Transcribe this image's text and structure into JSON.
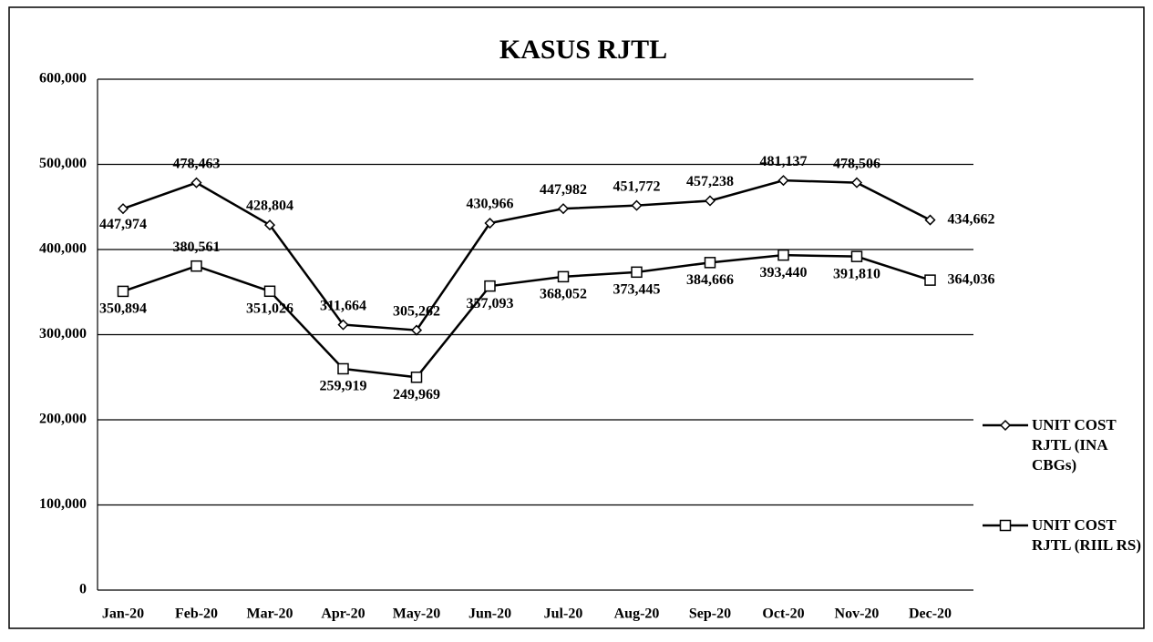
{
  "chart_data": {
    "type": "line",
    "title": "KASUS RJTL",
    "categories": [
      "Jan-20",
      "Feb-20",
      "Mar-20",
      "Apr-20",
      "May-20",
      "Jun-20",
      "Jul-20",
      "Aug-20",
      "Sep-20",
      "Oct-20",
      "Nov-20",
      "Dec-20"
    ],
    "series": [
      {
        "name": "UNIT COST RJTL (INA CBGs)",
        "color": "#000000",
        "marker": "diamond",
        "values": [
          447974,
          478463,
          428804,
          311664,
          305262,
          430966,
          447982,
          451772,
          457238,
          481137,
          478506,
          434662
        ],
        "value_labels": [
          "447,974",
          "478,463",
          "428,804",
          "311,664",
          "305,262",
          "430,966",
          "447,982",
          "451,772",
          "457,238",
          "481,137",
          "478,506",
          "434,662"
        ]
      },
      {
        "name": "UNIT COST RJTL (RIIL RS)",
        "color": "#000000",
        "marker": "square",
        "values": [
          350894,
          380561,
          351026,
          259919,
          249969,
          357093,
          368052,
          373445,
          384666,
          393440,
          391810,
          364036
        ],
        "value_labels": [
          "350,894",
          "380,561",
          "351,026",
          "259,919",
          "249,969",
          "357,093",
          "368,052",
          "373,445",
          "384,666",
          "393,440",
          "391,810",
          "364,036"
        ]
      }
    ],
    "ylim": [
      0,
      600000
    ],
    "yticks": [
      0,
      {
        "value": 100000,
        "label": "100,000"
      },
      {
        "value": 200000,
        "label": "200,000"
      },
      {
        "value": 300000,
        "label": "300,000"
      },
      {
        "value": 400000,
        "label": "400,000"
      },
      {
        "value": 500000,
        "label": "500,000"
      },
      {
        "value": 600000,
        "label": "600,000"
      }
    ],
    "grid": true,
    "legend": "right"
  }
}
